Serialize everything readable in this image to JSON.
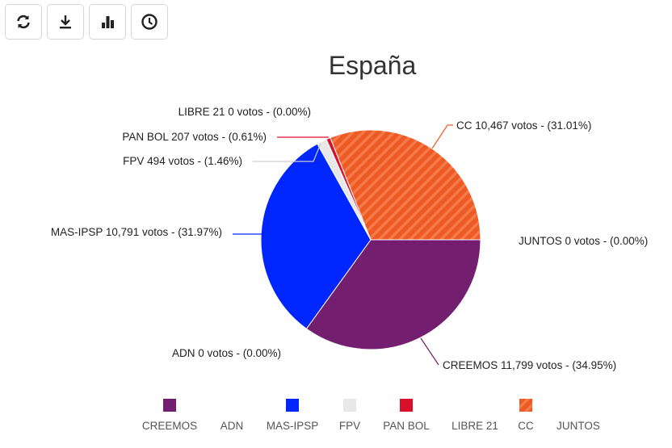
{
  "toolbar": [
    {
      "icon": "refresh-icon",
      "label": "Actualizar"
    },
    {
      "icon": "download-icon",
      "label": "Descargar"
    },
    {
      "icon": "bar-chart-icon",
      "label": "Gráfico de barras"
    },
    {
      "icon": "history-icon",
      "label": "Historial"
    }
  ],
  "chart_data": {
    "type": "pie",
    "title": "España",
    "start_angle": "east, clockwise",
    "legend_position": "bottom",
    "slices": [
      {
        "name": "CREEMOS",
        "votes": 11799,
        "label": "CREEMOS 11,799 votos - (34.95%)",
        "percent": 34.95,
        "color": "#731e6e"
      },
      {
        "name": "ADN",
        "votes": 0,
        "label": "ADN 0 votos - (0.00%)",
        "percent": 0,
        "color": "#ffffff"
      },
      {
        "name": "MAS-IPSP",
        "votes": 10791,
        "label": "MAS-IPSP 10,791 votos - (31.97%)",
        "percent": 31.97,
        "color": "#0026ff"
      },
      {
        "name": "FPV",
        "votes": 494,
        "label": "FPV 494 votos - (1.46%)",
        "percent": 1.46,
        "color": "#e8e8e8"
      },
      {
        "name": "PAN BOL",
        "votes": 207,
        "label": "PAN BOL 207 votos - (0.61%)",
        "percent": 0.61,
        "color": "#d9102a"
      },
      {
        "name": "LIBRE 21",
        "votes": 0,
        "label": "LIBRE 21 0 votos - (0.00%)",
        "percent": 0,
        "color": "#ffffff"
      },
      {
        "name": "CC",
        "votes": 10467,
        "label": "CC 10,467 votos - (31.01%)",
        "percent": 31.01,
        "color": "#ee5a24",
        "pattern": "striped"
      },
      {
        "name": "JUNTOS",
        "votes": 0,
        "label": "JUNTOS 0 votos - (0.00%)",
        "percent": 0,
        "color": "#ffffff"
      }
    ]
  }
}
